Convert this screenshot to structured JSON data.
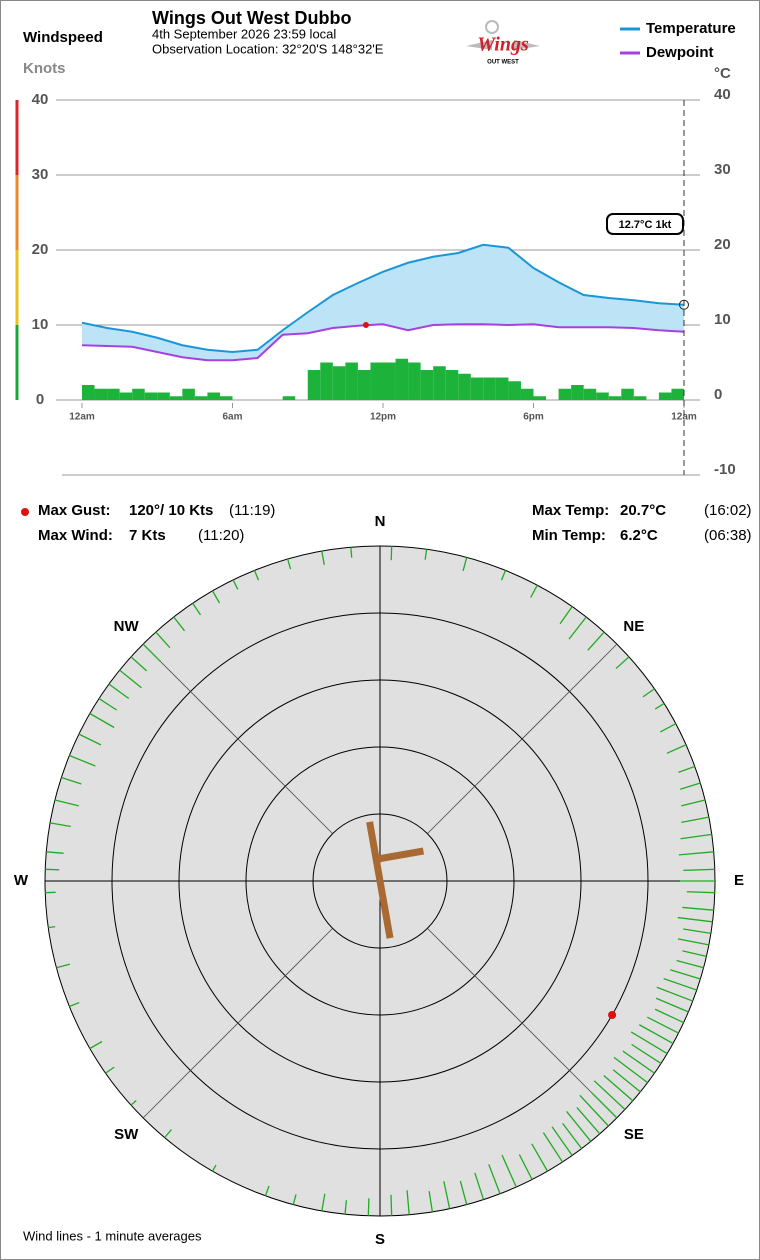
{
  "header": {
    "title": "Wings Out West Dubbo",
    "subtitle": [
      "4th September 2026  23:59 local",
      "Observation Location: 32°20'S 148°32'E"
    ]
  },
  "logo": {
    "text": "Wings",
    "subtext": "OUT WEST"
  },
  "stats": [
    {
      "label": "Max Gust:",
      "value": "120°/ 10 Kts",
      "time": "(11:19)"
    },
    {
      "label": "Max Wind:",
      "value": "7 Kts",
      "time": "(11:20)"
    },
    {
      "label": "Max Temp:",
      "value": "20.7°C",
      "time": "(16:02)"
    },
    {
      "label": "Min Temp:",
      "value": "6.2°C",
      "time": "(06:38)"
    }
  ],
  "footer": "Wind lines - 1 minute averages",
  "chart_data": [
    {
      "type": "line",
      "y_label": "Windspeed",
      "y_unit": "Knots",
      "y2_label": "°C",
      "xlim": [
        0,
        24
      ],
      "xticks": [
        {
          "value": 0,
          "label": "12am"
        },
        {
          "value": 6,
          "label": "6am"
        },
        {
          "value": 12,
          "label": "12pm"
        },
        {
          "value": 18,
          "label": "6pm"
        },
        {
          "value": 24,
          "label": "12am"
        }
      ],
      "ylim": [
        0,
        40
      ],
      "yticks": [
        0,
        10,
        20,
        30,
        40
      ],
      "y2lim": [
        -10,
        40
      ],
      "y2ticks": [
        -10,
        0,
        10,
        20,
        30,
        40
      ],
      "grid": true,
      "bands": [
        {
          "from": 0,
          "to": 10,
          "color": "#1aa83a"
        },
        {
          "from": 10,
          "to": 20,
          "color": "#e8c21a"
        },
        {
          "from": 20,
          "to": 30,
          "color": "#ec8a2a"
        },
        {
          "from": 30,
          "to": 40,
          "color": "#d8262a"
        }
      ],
      "fill_between": "#bde3f7",
      "series": [
        {
          "name": "Temperature",
          "color": "#1a96d8",
          "axis": "y2",
          "x": [
            0,
            1,
            2,
            3,
            4,
            5,
            6,
            7,
            8,
            9,
            10,
            11,
            12,
            13,
            14,
            15,
            16,
            17,
            18,
            19,
            20,
            21,
            22,
            23,
            24
          ],
          "values": [
            10.3,
            9.6,
            9.1,
            8.3,
            7.3,
            6.7,
            6.4,
            6.7,
            9.3,
            11.7,
            14.0,
            15.6,
            17.1,
            18.3,
            19.1,
            19.6,
            20.7,
            20.3,
            17.6,
            15.7,
            14.0,
            13.6,
            13.3,
            12.9,
            12.7
          ]
        },
        {
          "name": "Dewpoint",
          "color": "#a640e0",
          "axis": "y2",
          "x": [
            0,
            1,
            2,
            3,
            4,
            5,
            6,
            7,
            8,
            9,
            10,
            11,
            12,
            13,
            14,
            15,
            16,
            17,
            18,
            19,
            20,
            21,
            22,
            23,
            24
          ],
          "values": [
            7.3,
            7.2,
            7.1,
            6.4,
            5.7,
            5.3,
            5.3,
            5.6,
            8.7,
            8.9,
            9.6,
            9.9,
            10.1,
            9.3,
            10.0,
            10.1,
            10.1,
            10.0,
            10.1,
            9.7,
            9.7,
            9.7,
            9.6,
            9.3,
            9.1
          ]
        },
        {
          "type": "bar",
          "color": "#1db33a",
          "x": [
            0,
            0.5,
            1,
            1.5,
            2,
            2.5,
            3,
            3.5,
            4,
            4.5,
            5,
            5.5,
            6,
            6.5,
            7,
            7.5,
            8,
            8.5,
            9,
            9.5,
            10,
            10.5,
            11,
            11.5,
            12,
            12.5,
            13,
            13.5,
            14,
            14.5,
            15,
            15.5,
            16,
            16.5,
            17,
            17.5,
            18,
            18.5,
            19,
            19.5,
            20,
            20.5,
            21,
            21.5,
            22,
            22.5,
            23,
            23.5
          ],
          "values": [
            2,
            1.5,
            1.5,
            1,
            1.5,
            1,
            1,
            0.5,
            1.5,
            0.5,
            1,
            0.5,
            0,
            0,
            0,
            0,
            0.5,
            0,
            4,
            5,
            4.5,
            5,
            4,
            5,
            5,
            5.5,
            5,
            4,
            4.5,
            4,
            3.5,
            3,
            3,
            3,
            2.5,
            1.5,
            0.5,
            0,
            1.5,
            2,
            1.5,
            1,
            0.5,
            1.5,
            0.5,
            0,
            1,
            1.5
          ]
        }
      ],
      "cursor": {
        "x": 24,
        "label": "12.7°C  1kt"
      },
      "gust_marker": {
        "x": 11.32,
        "value": 10,
        "color": "#e01010"
      }
    },
    {
      "type": "polar",
      "compass": [
        "N",
        "NE",
        "E",
        "SE",
        "S",
        "SW",
        "W",
        "NW"
      ],
      "rlim": [
        0,
        12.5
      ],
      "rticks": [
        2.5,
        5,
        7.5,
        10
      ],
      "fill": "#e0e0e0",
      "color": "#22aa22",
      "directions": [
        350,
        355,
        2,
        8,
        15,
        22,
        28,
        35,
        38,
        42,
        48,
        55,
        58,
        62,
        66,
        70,
        73,
        76,
        79,
        82,
        85,
        88,
        90,
        92,
        95,
        97,
        99,
        101,
        103,
        105,
        107,
        109,
        111,
        113,
        115,
        117,
        119,
        121,
        123,
        125,
        127,
        129,
        131,
        133,
        135,
        137,
        139,
        141,
        143,
        145,
        147,
        150,
        153,
        156,
        159,
        162,
        165,
        168,
        171,
        175,
        178,
        182,
        186,
        190,
        195,
        200,
        210,
        220,
        228,
        235,
        240,
        248,
        255,
        262,
        268,
        272,
        275,
        280,
        284,
        288,
        292,
        296,
        300,
        303,
        306,
        309,
        312,
        315,
        318,
        322,
        326,
        330,
        334,
        338,
        344
      ],
      "speeds": [
        2,
        1.5,
        2,
        1.5,
        2,
        1.5,
        2,
        3,
        4,
        3.5,
        2.5,
        2,
        1.5,
        2.5,
        3,
        2.5,
        3,
        3.5,
        4,
        4.5,
        5,
        4.5,
        5,
        4,
        4.5,
        5,
        4,
        4.5,
        3.5,
        4,
        4.5,
        5,
        5.5,
        5,
        4.5,
        5,
        5.5,
        6,
        5,
        5.5,
        6,
        5,
        5.5,
        6,
        5,
        6,
        5,
        5.5,
        4.5,
        5,
        5,
        4.5,
        4,
        5,
        4.5,
        4,
        3.5,
        4,
        3,
        3.5,
        3,
        2.5,
        2,
        2.5,
        1.5,
        1.5,
        1,
        1.5,
        1,
        1.5,
        2,
        1.5,
        2,
        1,
        1.5,
        2,
        2.5,
        3,
        3.5,
        3,
        4,
        3.5,
        4,
        3,
        3.5,
        4,
        3,
        3.5,
        3,
        2.5,
        2,
        2,
        1.5,
        1.5,
        1.5
      ],
      "gust": {
        "direction": 120,
        "speed": 10,
        "color": "#e01010"
      },
      "wind_now": {
        "direction": 350,
        "speed": 1,
        "color": "#a86a32"
      }
    }
  ]
}
